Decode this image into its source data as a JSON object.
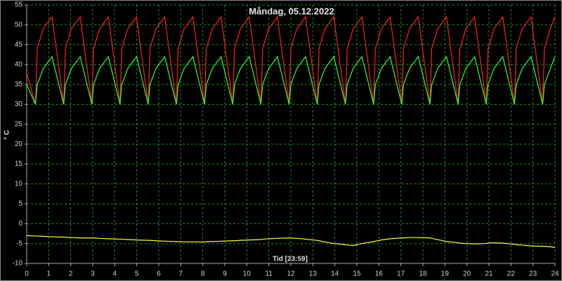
{
  "chart_data": {
    "type": "line",
    "title": "Måndag, 05.12.2022",
    "ylabel": "° C",
    "xlabel": "Tid [23:59]",
    "x": [
      0,
      0.4,
      0.48,
      0.75,
      1.15,
      1.68,
      1.76,
      2.03,
      2.43,
      2.96,
      3.04,
      3.31,
      3.71,
      4.24,
      4.32,
      4.59,
      4.99,
      5.52,
      5.6,
      5.87,
      6.27,
      6.8,
      6.88,
      7.15,
      7.55,
      8.08,
      8.16,
      8.43,
      8.83,
      9.36,
      9.44,
      9.71,
      10.11,
      10.64,
      10.72,
      10.99,
      11.39,
      11.92,
      12.0,
      12.27,
      12.67,
      13.2,
      13.28,
      13.55,
      13.95,
      14.48,
      14.56,
      14.83,
      15.23,
      15.76,
      15.84,
      16.11,
      16.51,
      17.04,
      17.12,
      17.39,
      17.79,
      18.32,
      18.4,
      18.67,
      19.07,
      19.6,
      19.68,
      19.95,
      20.35,
      20.88,
      20.96,
      21.23,
      21.63,
      22.16,
      22.24,
      22.51,
      22.91,
      23.44,
      23.52,
      23.79,
      24.0
    ],
    "series": [
      {
        "color": "#ff2020",
        "values": [
          38,
          30,
          44,
          49,
          52,
          30,
          44,
          49,
          52,
          30,
          44,
          49,
          52,
          30,
          44,
          49,
          52,
          30,
          44,
          49,
          52,
          30,
          44,
          49,
          52,
          30,
          44,
          49,
          52,
          30,
          44,
          49,
          52,
          30,
          44,
          49,
          52,
          30,
          44,
          49,
          52,
          30,
          44,
          49,
          52,
          30,
          44,
          49,
          52,
          30,
          44,
          49,
          52,
          30,
          44,
          49,
          52,
          30,
          44,
          49,
          52,
          30,
          44,
          49,
          52,
          30,
          44,
          49,
          52,
          30,
          44,
          49,
          52,
          30,
          44,
          49,
          52
        ]
      },
      {
        "color": "#33ff33",
        "values": [
          35,
          30,
          35,
          39,
          42,
          30,
          35,
          39,
          42,
          30,
          35,
          39,
          42,
          30,
          35,
          39,
          42,
          30,
          35,
          39,
          42,
          30,
          35,
          39,
          42,
          30,
          35,
          39,
          42,
          30,
          35,
          39,
          42,
          30,
          35,
          39,
          42,
          30,
          35,
          39,
          42,
          30,
          35,
          39,
          42,
          30,
          35,
          39,
          42,
          30,
          35,
          39,
          42,
          30,
          35,
          39,
          42,
          30,
          35,
          39,
          42,
          30,
          35,
          39,
          42,
          30,
          35,
          39,
          42,
          30,
          35,
          39,
          42,
          30,
          35,
          39,
          42
        ]
      },
      {
        "color": "#ffff33",
        "values": [
          -3.0,
          -3.1,
          -3.1,
          -3.2,
          -3.3,
          -3.4,
          -3.4,
          -3.5,
          -3.6,
          -3.6,
          -3.6,
          -3.7,
          -3.8,
          -3.9,
          -3.9,
          -4.0,
          -4.1,
          -4.2,
          -4.2,
          -4.3,
          -4.4,
          -4.5,
          -4.5,
          -4.6,
          -4.6,
          -4.6,
          -4.5,
          -4.5,
          -4.4,
          -4.3,
          -4.3,
          -4.2,
          -4.1,
          -4.0,
          -3.9,
          -3.8,
          -3.7,
          -3.6,
          -3.6,
          -3.7,
          -3.9,
          -4.2,
          -4.3,
          -4.6,
          -5.0,
          -5.3,
          -5.4,
          -5.5,
          -5.0,
          -4.5,
          -4.4,
          -4.1,
          -3.8,
          -3.6,
          -3.6,
          -3.5,
          -3.5,
          -3.6,
          -3.7,
          -4.0,
          -4.5,
          -4.8,
          -4.9,
          -5.0,
          -5.1,
          -5.0,
          -4.9,
          -4.8,
          -4.9,
          -5.2,
          -5.3,
          -5.4,
          -5.6,
          -5.7,
          -5.7,
          -5.8,
          -6.0
        ]
      }
    ],
    "xlim": [
      0,
      24
    ],
    "xticks": [
      0,
      1,
      2,
      3,
      4,
      5,
      6,
      7,
      8,
      9,
      10,
      11,
      12,
      13,
      14,
      15,
      16,
      17,
      18,
      19,
      20,
      21,
      22,
      23,
      24
    ],
    "ylim": [
      -10,
      55
    ],
    "yticks": [
      -10,
      -5,
      0,
      5,
      10,
      15,
      20,
      25,
      30,
      35,
      40,
      45,
      50,
      55
    ],
    "grid": true
  }
}
